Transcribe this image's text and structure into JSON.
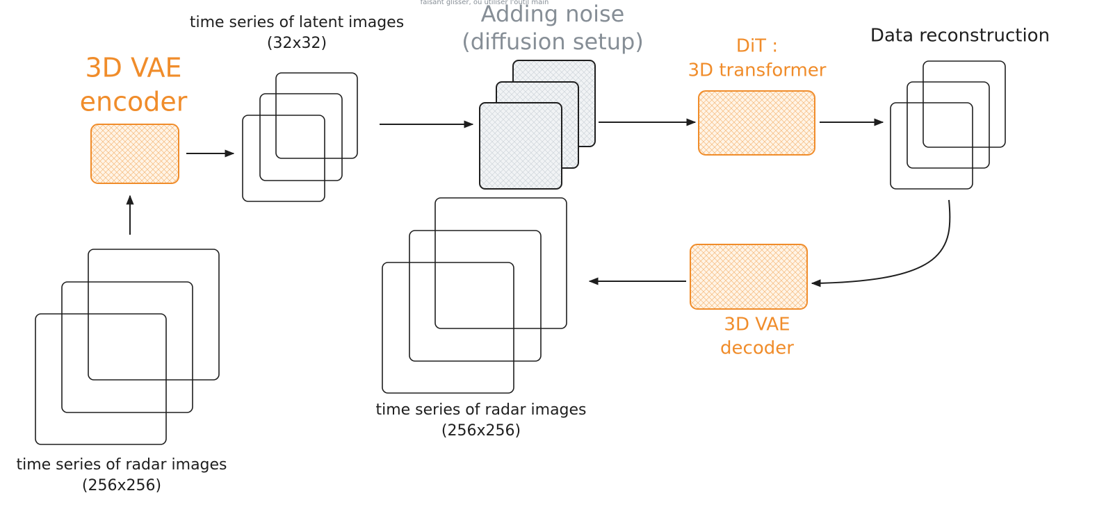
{
  "notice": "faisant glisser, ou utiliser l'outil main",
  "nodes": [
    {
      "lines": [
        "3D VAE",
        "encoder"
      ]
    },
    {
      "lines": [
        "time series of latent images",
        "(32x32)"
      ]
    },
    {
      "lines": [
        "Adding noise",
        "(diffusion setup)"
      ]
    },
    {
      "lines": [
        "DiT :",
        "3D transformer"
      ]
    },
    {
      "lines": [
        "Data reconstruction"
      ]
    },
    {
      "lines": [
        "3D VAE",
        "decoder"
      ]
    },
    {
      "lines": [
        "time series of radar images",
        "(256x256)"
      ]
    },
    {
      "lines": [
        "time series of radar images",
        "(256x256)"
      ]
    }
  ]
}
